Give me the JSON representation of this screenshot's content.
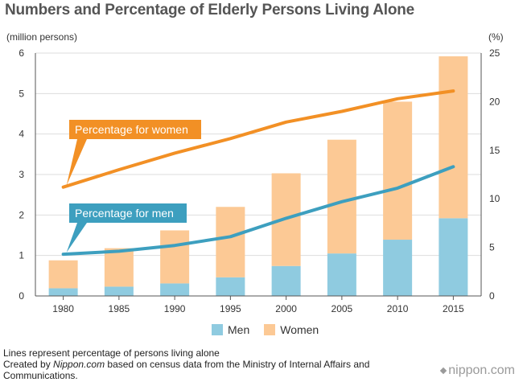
{
  "title": "Numbers and Percentage of Elderly Persons Living Alone",
  "colors": {
    "men_bar": "#8fcbe0",
    "women_bar": "#fcc995",
    "women_line": "#f29025",
    "men_line": "#3d9fbf",
    "grid": "#dddddd",
    "axis": "#555555"
  },
  "chart_data": {
    "type": "bar",
    "title": "Numbers and Percentage of Elderly Persons Living Alone",
    "categories": [
      "1980",
      "1985",
      "1990",
      "1995",
      "2000",
      "2005",
      "2010",
      "2015"
    ],
    "left_axis": {
      "label": "(million persons)",
      "ylim": [
        0,
        6
      ],
      "ticks": [
        "0",
        "1",
        "2",
        "3",
        "4",
        "5",
        "6"
      ]
    },
    "right_axis": {
      "label": "(%)",
      "ylim": [
        0,
        25
      ],
      "ticks": [
        "0",
        "5",
        "10",
        "15",
        "20",
        "25"
      ]
    },
    "stacked": true,
    "series": [
      {
        "name": "Men",
        "kind": "bar",
        "axis": "left",
        "values": [
          0.19,
          0.23,
          0.31,
          0.46,
          0.74,
          1.05,
          1.39,
          1.92
        ]
      },
      {
        "name": "Women",
        "kind": "bar",
        "axis": "left",
        "values": [
          0.69,
          0.95,
          1.31,
          1.74,
          2.29,
          2.81,
          3.41,
          4.0
        ]
      },
      {
        "name": "Percentage for women",
        "kind": "line",
        "axis": "right",
        "values": [
          11.2,
          13.0,
          14.7,
          16.2,
          17.9,
          19.0,
          20.3,
          21.1
        ]
      },
      {
        "name": "Percentage for men",
        "kind": "line",
        "axis": "right",
        "values": [
          4.3,
          4.6,
          5.2,
          6.1,
          8.0,
          9.7,
          11.1,
          13.3
        ]
      }
    ],
    "line_callouts": [
      "Percentage for women",
      "Percentage for men"
    ],
    "legend": [
      "Men",
      "Women"
    ],
    "legend_position": "bottom",
    "grid": true
  },
  "legend": {
    "men": "Men",
    "women": "Women"
  },
  "notes": {
    "line1": "Lines represent percentage of persons living alone",
    "created_prefix": "Created by ",
    "created_source": "Nippon.com",
    "created_suffix": " based on census data from the Ministry of Internal Affairs and Communications."
  },
  "logo": "nippon.com"
}
